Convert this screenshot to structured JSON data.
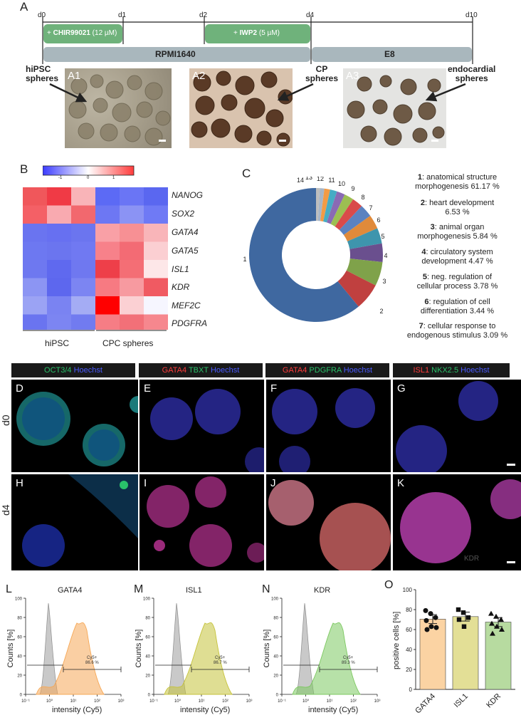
{
  "panelA": {
    "label": "A",
    "days": [
      "d0",
      "d1",
      "d2",
      "d4",
      "d10"
    ],
    "chir": {
      "name": "CHIR99021",
      "conc": "(12 µM)"
    },
    "iwp": {
      "name": "IWP2",
      "conc": "(5 µM)"
    },
    "media": [
      "RPMI1640",
      "E8"
    ],
    "sublabels": [
      "A1",
      "A2",
      "A3"
    ],
    "callouts": [
      [
        "hiPSC",
        "spheres"
      ],
      [
        "CP",
        "spheres"
      ],
      [
        "endocardial",
        "spheres"
      ]
    ],
    "colors": {
      "green": "#6fb27b",
      "grey": "#a9b7bd"
    }
  },
  "panelB": {
    "label": "B",
    "scale_ticks": [
      "-1",
      "0",
      "1"
    ],
    "genes": [
      "NANOG",
      "SOX2",
      "GATA4",
      "GATA5",
      "ISL1",
      "KDR",
      "MEF2C",
      "PDGFRA"
    ],
    "groups": [
      "hiPSC",
      "CPC spheres"
    ]
  },
  "panelC": {
    "label": "C",
    "terms": [
      {
        "n": "1",
        "text": [
          "anatomical structure",
          "morphogenesis 61.17 %"
        ]
      },
      {
        "n": "2",
        "text": [
          "heart development",
          "6.53 %"
        ]
      },
      {
        "n": "3",
        "text": [
          "animal organ",
          "morphogenesis 5.84 %"
        ]
      },
      {
        "n": "4",
        "text": [
          "circulatory system",
          "development  4.47 %"
        ]
      },
      {
        "n": "5",
        "text": [
          "neg. regulation of",
          "cellular process 3.78 %"
        ]
      },
      {
        "n": "6",
        "text": [
          "regulation of cell",
          "differentiation 3.44 %"
        ]
      },
      {
        "n": "7",
        "text": [
          "cellular response to",
          "endogenous stimulus 3.09 %"
        ]
      }
    ]
  },
  "panelMicro": {
    "stains": [
      [
        {
          "t": "OCT3/4",
          "c": "#29c26a"
        },
        {
          "t": " Hoechst",
          "c": "#4a5bff"
        }
      ],
      [
        {
          "t": "GATA4",
          "c": "#ff3b3b"
        },
        {
          "t": " TBXT",
          "c": "#29c26a"
        },
        {
          "t": " Hoechst",
          "c": "#4a5bff"
        }
      ],
      [
        {
          "t": "GATA4",
          "c": "#ff3b3b"
        },
        {
          "t": " PDGFRA",
          "c": "#29c26a"
        },
        {
          "t": " Hoechst",
          "c": "#4a5bff"
        }
      ],
      [
        {
          "t": "ISL1",
          "c": "#ff3b3b"
        },
        {
          "t": " NKX2.5",
          "c": "#29c26a"
        },
        {
          "t": " Hoechst",
          "c": "#4a5bff"
        }
      ]
    ],
    "rows": [
      "d0",
      "d4"
    ],
    "labels": [
      "D",
      "E",
      "F",
      "G",
      "H",
      "I",
      "J",
      "K"
    ],
    "kdr_watermark": "KDR"
  },
  "flow": {
    "panels": [
      {
        "label": "L",
        "title": "GATA4",
        "gate": "Cy5+",
        "pct": "86.6 %",
        "color": "#f6a857"
      },
      {
        "label": "M",
        "title": "ISL1",
        "gate": "Cy5+",
        "pct": "86.7 %",
        "color": "#c5c23a"
      },
      {
        "label": "N",
        "title": "KDR",
        "gate": "Cy5+",
        "pct": "89.3 %",
        "color": "#7cc860"
      }
    ],
    "ylabel": "Counts [%]",
    "xlabel": "intensity (Cy5)",
    "yticks": [
      "0",
      "20",
      "40",
      "60",
      "80",
      "100"
    ],
    "xticks": [
      "10⁻¹",
      "10⁰",
      "10¹",
      "10²",
      "10³"
    ]
  },
  "chart_data": {
    "type": "bar",
    "label": "O",
    "categories": [
      "GATA4",
      "ISL1",
      "KDR"
    ],
    "values": [
      70.5,
      73,
      67.5
    ],
    "errors": [
      4.5,
      4.5,
      4.5
    ],
    "colors": [
      "#fbd3a3",
      "#e3df96",
      "#b7dba0"
    ],
    "points": [
      [
        79,
        76,
        72,
        69,
        63,
        62,
        60
      ],
      [
        80,
        77,
        72,
        70,
        63
      ],
      [
        76,
        73,
        70,
        66,
        63,
        60,
        56
      ]
    ],
    "ylabel": "positive cells [%]",
    "ylim": [
      0,
      100
    ],
    "yticks": [
      0,
      20,
      40,
      60,
      80,
      100
    ]
  }
}
